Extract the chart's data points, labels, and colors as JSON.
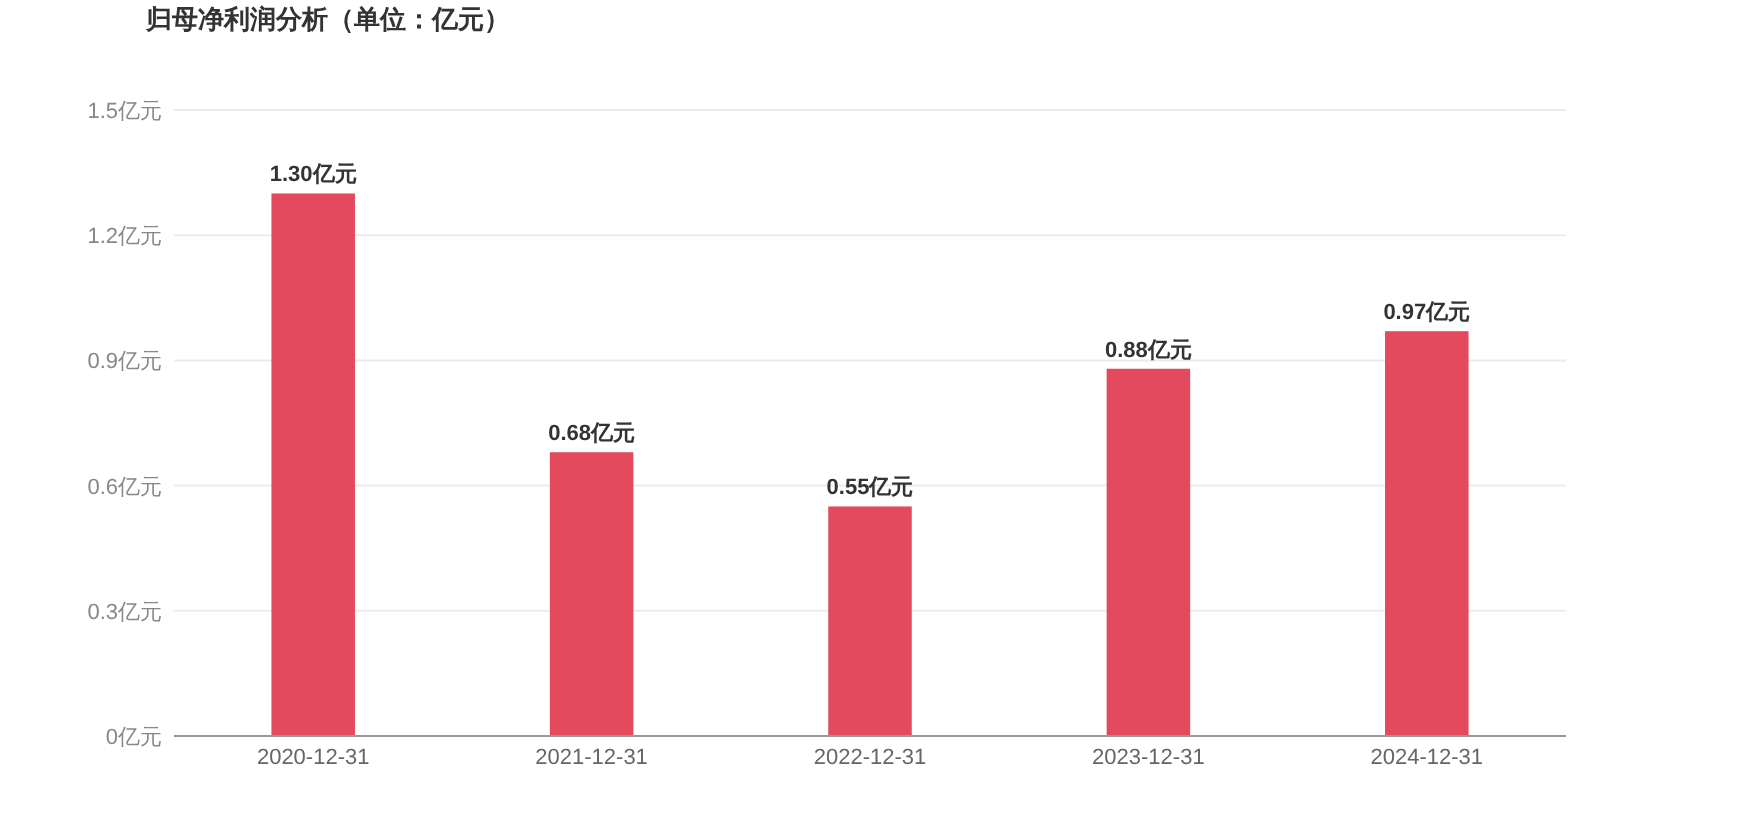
{
  "chart_data": {
    "type": "bar",
    "title": "归母净利润分析（单位：亿元）",
    "categories": [
      "2020-12-31",
      "2021-12-31",
      "2022-12-31",
      "2023-12-31",
      "2024-12-31"
    ],
    "values": [
      1.3,
      0.68,
      0.55,
      0.88,
      0.97
    ],
    "value_labels": [
      "1.30亿元",
      "0.68亿元",
      "0.55亿元",
      "0.88亿元",
      "0.97亿元"
    ],
    "color": "#e34a5e",
    "ylim": [
      0,
      1.5
    ],
    "yticks": [
      {
        "value": 0,
        "label": "0亿元"
      },
      {
        "value": 0.3,
        "label": "0.3亿元"
      },
      {
        "value": 0.6,
        "label": "0.6亿元"
      },
      {
        "value": 0.9,
        "label": "0.9亿元"
      },
      {
        "value": 1.2,
        "label": "1.2亿元"
      },
      {
        "value": 1.5,
        "label": "1.5亿元"
      }
    ],
    "grid": "y"
  }
}
